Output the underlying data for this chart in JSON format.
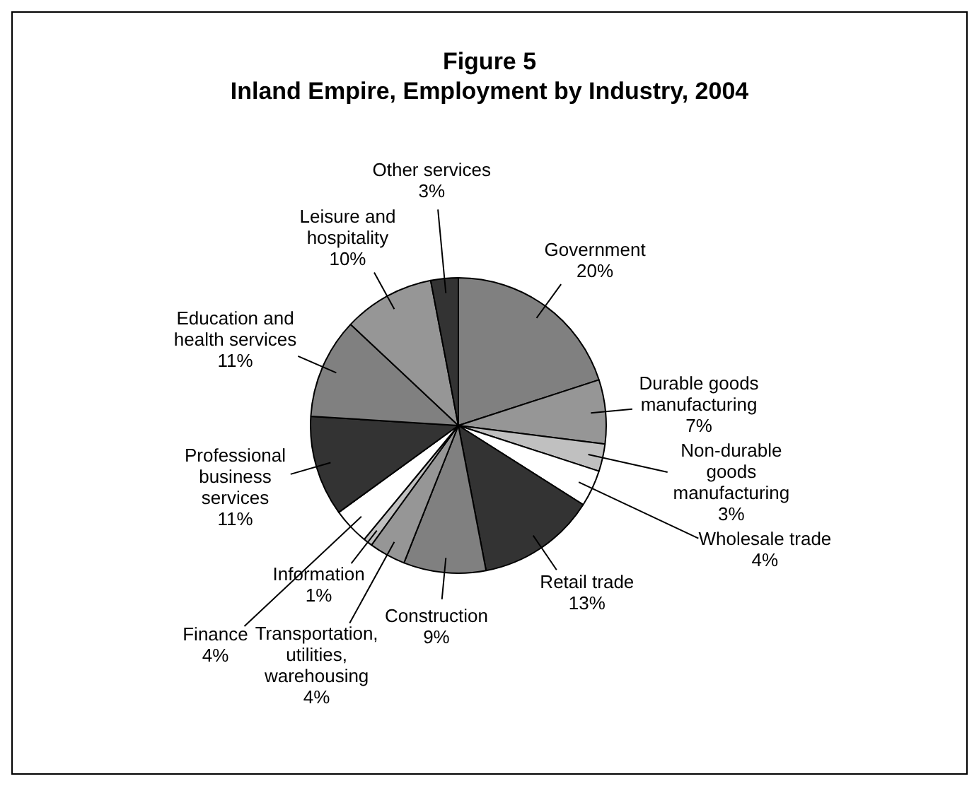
{
  "chart_data": {
    "type": "pie",
    "title": "Figure 5",
    "subtitle": "Inland Empire, Employment by Industry, 2004",
    "categories": [
      "Government",
      "Durable goods manufacturing",
      "Non-durable goods manufacturing",
      "Wholesale trade",
      "Retail trade",
      "Construction",
      "Transportation, utilities, warehousing",
      "Information",
      "Finance",
      "Professional business services",
      "Education and health services",
      "Leisure and hospitality",
      "Other services"
    ],
    "values": [
      20,
      7,
      3,
      4,
      13,
      9,
      4,
      1,
      4,
      11,
      11,
      10,
      3
    ],
    "value_labels": [
      "20%",
      "7%",
      "3%",
      "4%",
      "13%",
      "9%",
      "4%",
      "1%",
      "4%",
      "11%",
      "11%",
      "10%",
      "3%"
    ],
    "colors": [
      "#808080",
      "#969696",
      "#c0c0c0",
      "#ffffff",
      "#333333",
      "#808080",
      "#969696",
      "#c0c0c0",
      "#ffffff",
      "#333333",
      "#808080",
      "#969696",
      "#333333"
    ],
    "legend": false
  }
}
